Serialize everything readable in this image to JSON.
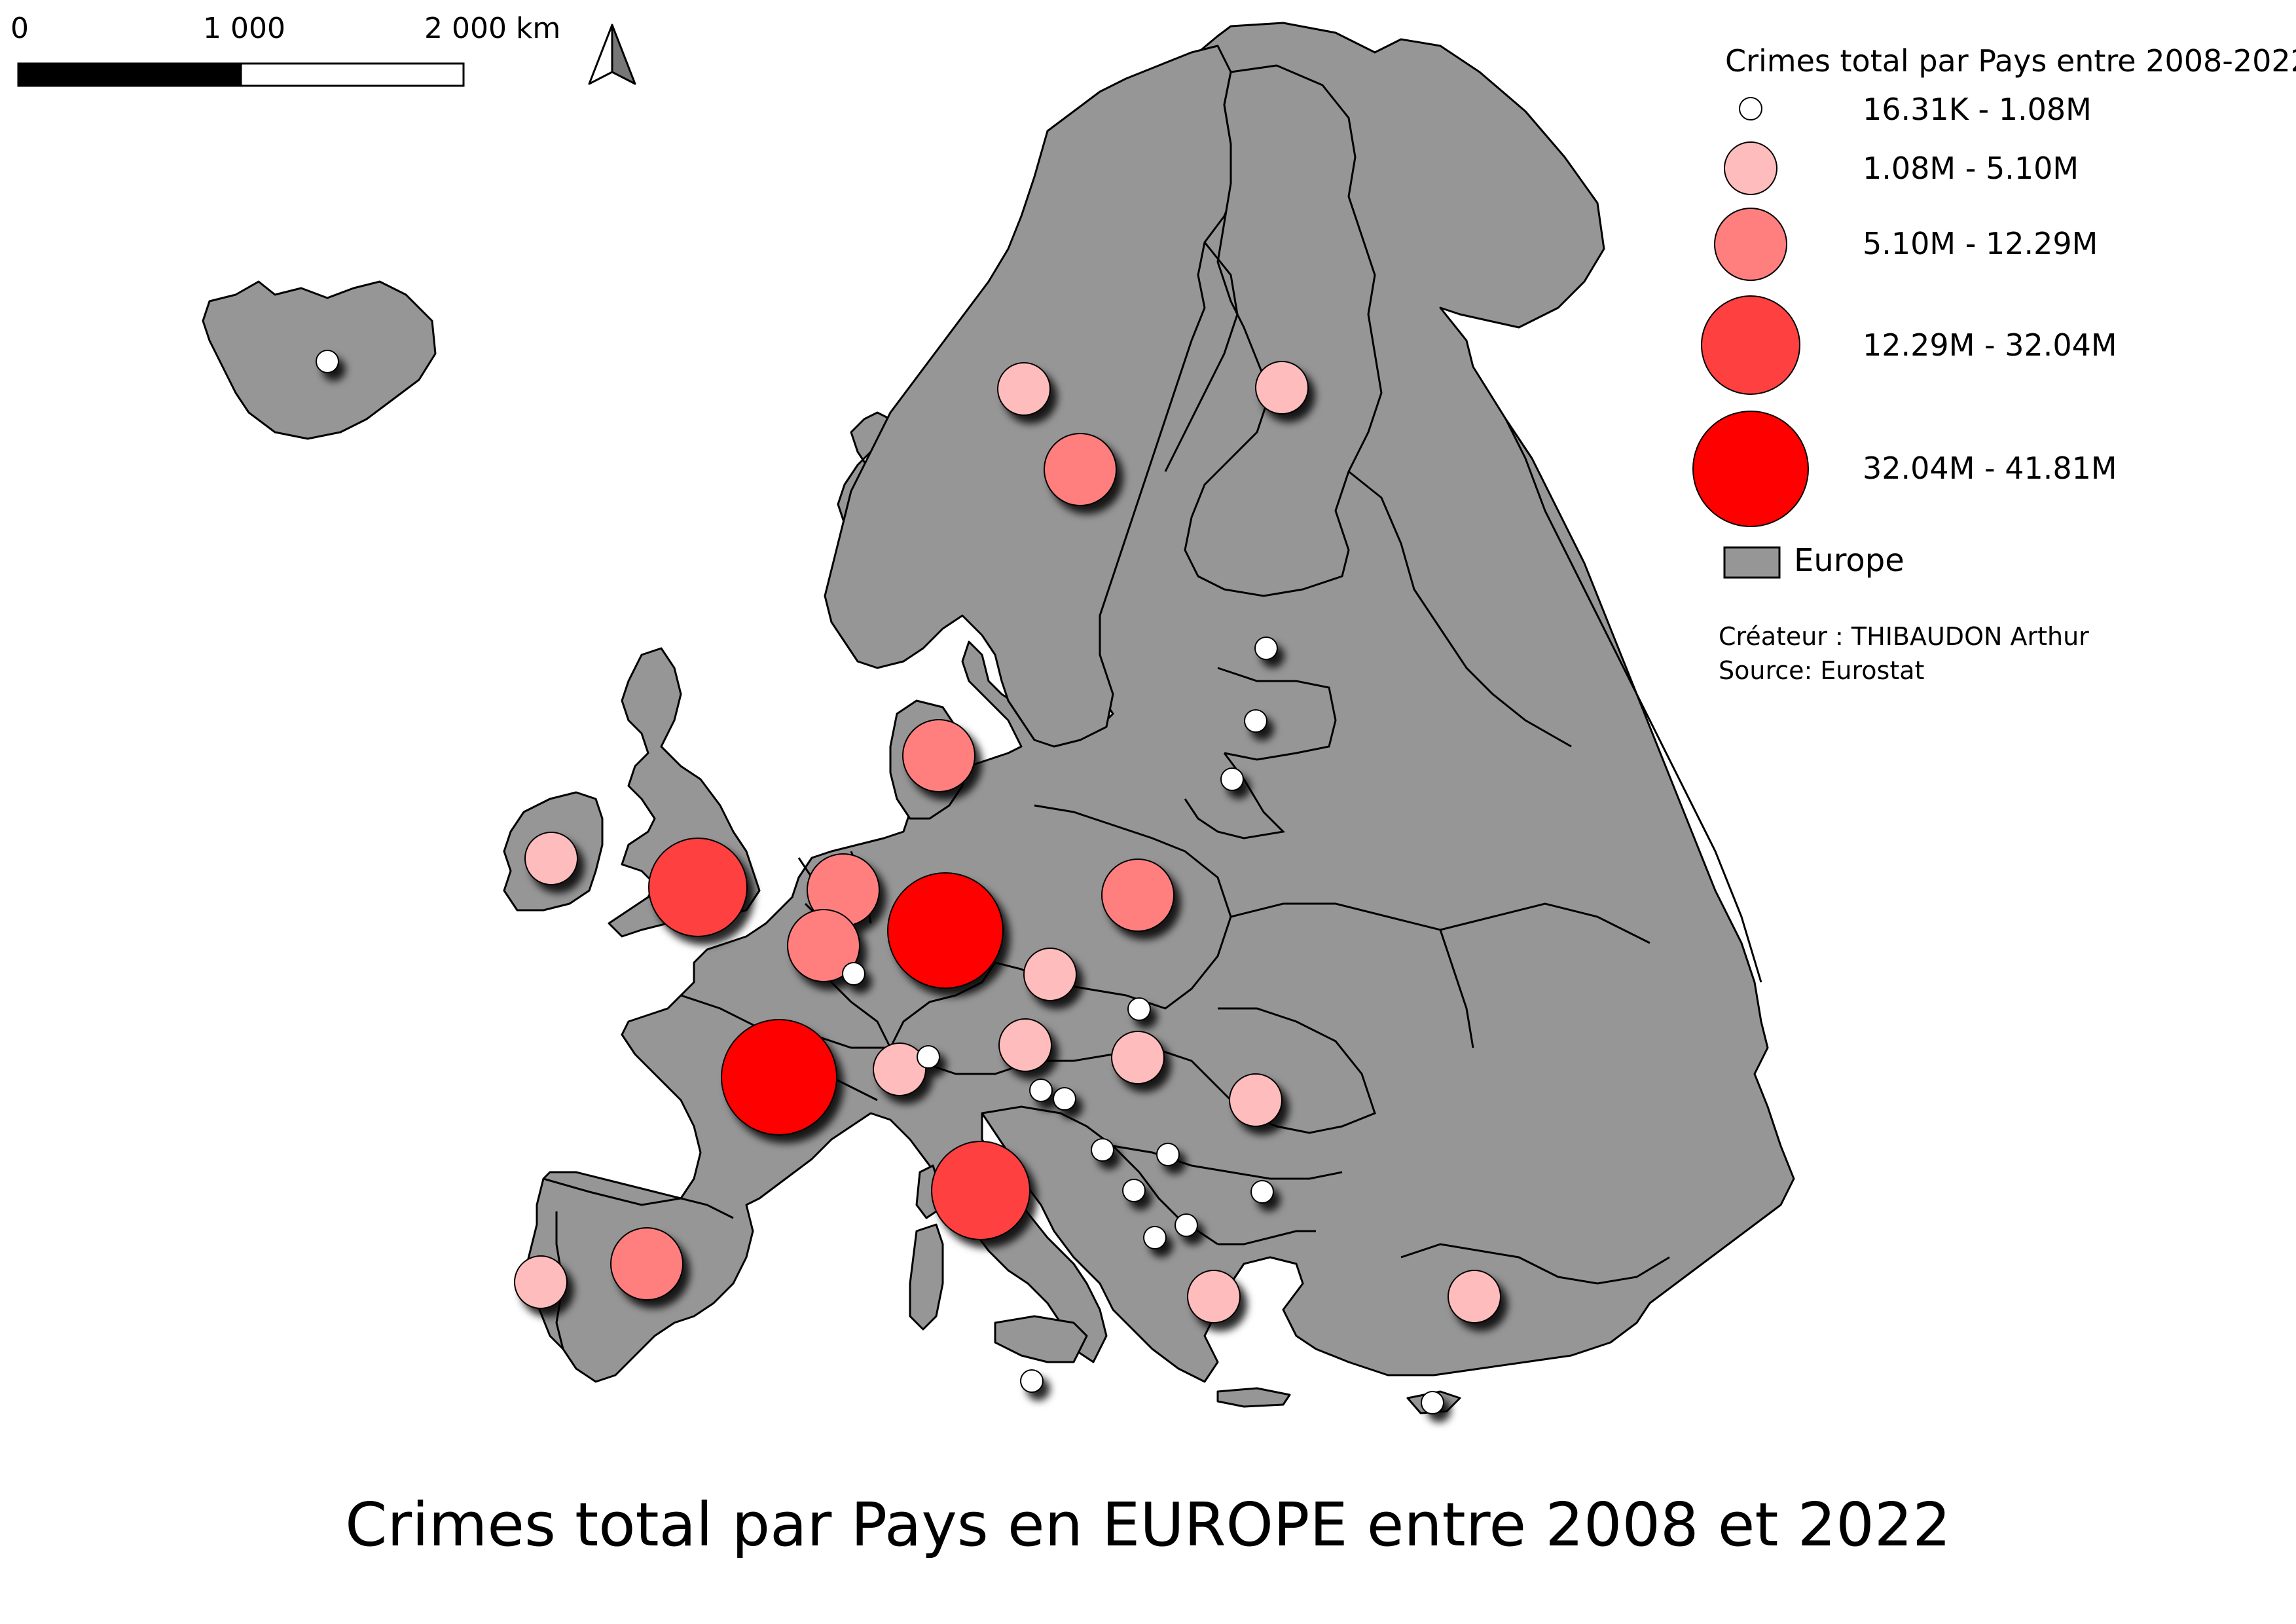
{
  "title": "Crimes total par Pays en EUROPE entre 2008 et 2022",
  "scale_bar": {
    "labels": [
      "0",
      "1 000",
      "2 000 km"
    ]
  },
  "north_arrow": {
    "icon": "north-arrow-icon"
  },
  "legend": {
    "title": "Crimes total par Pays entre 2008-2022",
    "classes": [
      {
        "label": "16.31K - 1.08M",
        "color": "#ffffff"
      },
      {
        "label": "1.08M - 5.10M",
        "color": "#ffbcbc"
      },
      {
        "label": "5.10M - 12.29M",
        "color": "#ff7f7f"
      },
      {
        "label": "12.29M - 32.04M",
        "color": "#ff4040"
      },
      {
        "label": "32.04M - 41.81M",
        "color": "#ff0000"
      }
    ],
    "europe_label": "Europe",
    "europe_color": "#969696",
    "creator": "Créateur : THIBAUDON Arthur",
    "source": "Source: Eurostat"
  },
  "map_symbols": [
    {
      "name": "iceland",
      "class": 0
    },
    {
      "name": "norway",
      "class": 1
    },
    {
      "name": "sweden",
      "class": 2
    },
    {
      "name": "finland",
      "class": 1
    },
    {
      "name": "estonia",
      "class": 0
    },
    {
      "name": "latvia",
      "class": 0
    },
    {
      "name": "lithuania",
      "class": 0
    },
    {
      "name": "denmark",
      "class": 2
    },
    {
      "name": "ireland",
      "class": 1
    },
    {
      "name": "united-kingdom",
      "class": 3
    },
    {
      "name": "netherlands",
      "class": 2
    },
    {
      "name": "belgium",
      "class": 2
    },
    {
      "name": "luxembourg",
      "class": 0
    },
    {
      "name": "germany",
      "class": 4
    },
    {
      "name": "poland",
      "class": 2
    },
    {
      "name": "czechia",
      "class": 1
    },
    {
      "name": "slovakia",
      "class": 0
    },
    {
      "name": "austria",
      "class": 1
    },
    {
      "name": "hungary",
      "class": 1
    },
    {
      "name": "switzerland",
      "class": 1
    },
    {
      "name": "liechtenstein",
      "class": 0
    },
    {
      "name": "france",
      "class": 4
    },
    {
      "name": "slovenia",
      "class": 0
    },
    {
      "name": "croatia",
      "class": 0
    },
    {
      "name": "romania",
      "class": 1
    },
    {
      "name": "bosnia",
      "class": 0
    },
    {
      "name": "serbia",
      "class": 0
    },
    {
      "name": "bulgaria",
      "class": 0
    },
    {
      "name": "montenegro",
      "class": 0
    },
    {
      "name": "north-macedonia",
      "class": 0
    },
    {
      "name": "albania",
      "class": 0
    },
    {
      "name": "italy",
      "class": 3
    },
    {
      "name": "spain",
      "class": 2
    },
    {
      "name": "portugal",
      "class": 1
    },
    {
      "name": "greece",
      "class": 1
    },
    {
      "name": "turkey",
      "class": 1
    },
    {
      "name": "malta",
      "class": 0
    },
    {
      "name": "cyprus",
      "class": 0
    }
  ]
}
